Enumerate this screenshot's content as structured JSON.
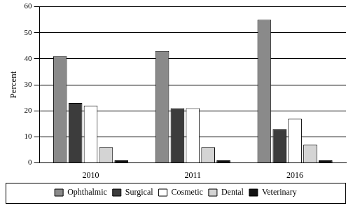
{
  "chart_data": {
    "type": "bar",
    "y_label": "Percent",
    "categories": [
      "2010",
      "2011",
      "2016"
    ],
    "series": [
      {
        "name": "Ophthalmic",
        "color": "#8a8a8a",
        "values": [
          41,
          43,
          55
        ]
      },
      {
        "name": "Surgical",
        "color": "#3c3c3c",
        "values": [
          23,
          21,
          13
        ]
      },
      {
        "name": "Cosmetic",
        "color": "#ffffff",
        "values": [
          22,
          21,
          17
        ]
      },
      {
        "name": "Dental",
        "color": "#d4d4d4",
        "values": [
          6,
          6,
          7
        ]
      },
      {
        "name": "Veterinary",
        "color": "#111111",
        "values": [
          1,
          1,
          1
        ]
      }
    ],
    "ylim": [
      0,
      60
    ],
    "yticks": [
      0,
      10,
      20,
      30,
      40,
      50,
      60
    ],
    "grid": true,
    "legend": "bottom"
  }
}
